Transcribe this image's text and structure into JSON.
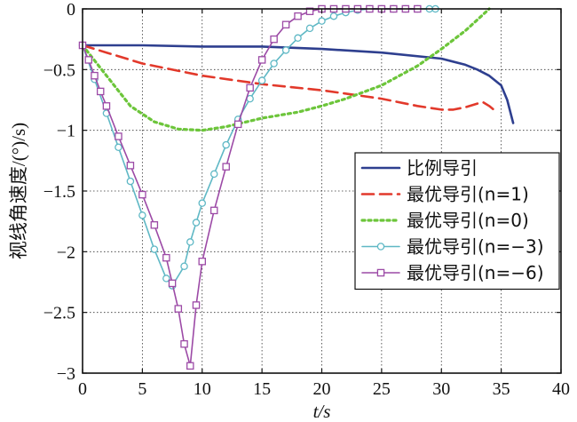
{
  "chart_data": {
    "type": "line",
    "xlabel": "t/s",
    "ylabel": "视线角速度/(°)/s)",
    "xlim": [
      0,
      40
    ],
    "ylim": [
      -3,
      0
    ],
    "xticks": [
      "0",
      "5",
      "10",
      "15",
      "20",
      "25",
      "30",
      "35",
      "40"
    ],
    "yticks": [
      "0",
      "−0.5",
      "−1",
      "−1.5",
      "−2",
      "−2.5",
      "−3"
    ],
    "grid": true,
    "legend_position": "right",
    "series": [
      {
        "name": "比例导引",
        "color": "#2e3f8f",
        "style": "solid",
        "marker": "none",
        "x": [
          0,
          5,
          10,
          15,
          20,
          25,
          30,
          32,
          33,
          34,
          35,
          35.5,
          36
        ],
        "y": [
          -0.3,
          -0.3,
          -0.31,
          -0.31,
          -0.33,
          -0.36,
          -0.41,
          -0.46,
          -0.5,
          -0.55,
          -0.63,
          -0.75,
          -0.94
        ]
      },
      {
        "name": "最优导引(n=1)",
        "color": "#e2392b",
        "style": "dashed",
        "marker": "none",
        "x": [
          0,
          2,
          5,
          10,
          15,
          20,
          25,
          28,
          30,
          31,
          32,
          33,
          33.5,
          34,
          34.5
        ],
        "y": [
          -0.3,
          -0.36,
          -0.45,
          -0.55,
          -0.62,
          -0.67,
          -0.74,
          -0.8,
          -0.83,
          -0.83,
          -0.81,
          -0.78,
          -0.77,
          -0.8,
          -0.84
        ]
      },
      {
        "name": "最优导引(n=0)",
        "color": "#6cc53a",
        "style": "dotted",
        "marker": "none",
        "x": [
          0,
          2,
          4,
          6,
          8,
          10,
          12,
          15,
          18,
          20,
          22,
          25,
          28,
          30,
          32,
          33,
          34
        ],
        "y": [
          -0.3,
          -0.55,
          -0.8,
          -0.93,
          -0.99,
          -1.0,
          -0.97,
          -0.9,
          -0.85,
          -0.8,
          -0.74,
          -0.63,
          -0.47,
          -0.33,
          -0.18,
          -0.09,
          0
        ]
      },
      {
        "name": "最优导引(n=−3)",
        "color": "#5fb8c5",
        "style": "solid",
        "marker": "circle",
        "x": [
          0,
          1,
          2,
          3,
          4,
          5,
          6,
          7,
          7.5,
          8.5,
          9,
          9.5,
          10,
          11,
          12,
          13,
          14,
          15,
          16,
          17,
          18,
          19,
          20,
          21,
          22,
          23,
          24,
          25,
          26,
          27,
          28,
          29,
          29.5
        ],
        "y": [
          -0.3,
          -0.58,
          -0.86,
          -1.14,
          -1.42,
          -1.7,
          -1.98,
          -2.22,
          -2.28,
          -2.12,
          -1.92,
          -1.76,
          -1.6,
          -1.36,
          -1.12,
          -0.91,
          -0.74,
          -0.59,
          -0.45,
          -0.34,
          -0.24,
          -0.16,
          -0.1,
          -0.06,
          -0.03,
          -0.01,
          0,
          0,
          0,
          0,
          0,
          0,
          0
        ]
      },
      {
        "name": "最优导引(n=−6)",
        "color": "#9c4aa6",
        "style": "solid",
        "marker": "square",
        "x": [
          0,
          0.5,
          1,
          1.5,
          2,
          3,
          4,
          5,
          6,
          7,
          7.5,
          8,
          8.5,
          9,
          9.5,
          10,
          11,
          12,
          13,
          14,
          15,
          16,
          17,
          18,
          19,
          20,
          21,
          22,
          23,
          24,
          25,
          26,
          27,
          28
        ],
        "y": [
          -0.3,
          -0.42,
          -0.55,
          -0.68,
          -0.8,
          -1.05,
          -1.29,
          -1.53,
          -1.78,
          -2.05,
          -2.26,
          -2.47,
          -2.76,
          -2.94,
          -2.44,
          -2.08,
          -1.66,
          -1.3,
          -0.95,
          -0.65,
          -0.42,
          -0.25,
          -0.13,
          -0.06,
          -0.02,
          0,
          0,
          0,
          0,
          0,
          0,
          0,
          0,
          0
        ]
      }
    ]
  }
}
